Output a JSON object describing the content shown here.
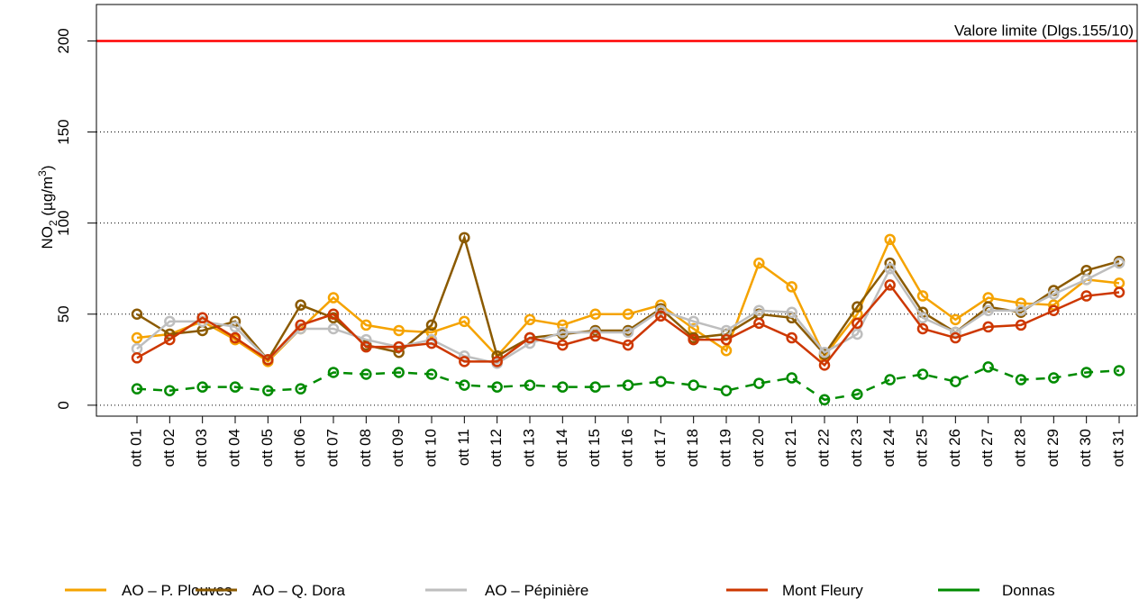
{
  "chart_data": {
    "type": "line",
    "ylabel": {
      "base": "NO",
      "sub": "2",
      "unit": " (µg/m",
      "sup": "3",
      "close": ")"
    },
    "categories": [
      "ott 01",
      "ott 02",
      "ott 03",
      "ott 04",
      "ott 05",
      "ott 06",
      "ott 07",
      "ott 08",
      "ott 09",
      "ott 10",
      "ott 11",
      "ott 12",
      "ott 13",
      "ott 14",
      "ott 15",
      "ott 16",
      "ott 17",
      "ott 18",
      "ott 19",
      "ott 20",
      "ott 21",
      "ott 22",
      "ott 23",
      "ott 24",
      "ott 25",
      "ott 26",
      "ott 27",
      "ott 28",
      "ott 29",
      "ott 30",
      "ott 31"
    ],
    "series": [
      {
        "name": "AO – P. Plouves",
        "color": "#f5a300",
        "linestyle": "solid",
        "values": [
          37,
          39,
          46,
          36,
          24,
          42,
          59,
          44,
          41,
          40,
          46,
          27,
          47,
          44,
          50,
          50,
          55,
          42,
          30,
          78,
          65,
          27,
          50,
          91,
          60,
          47,
          59,
          56,
          55,
          69,
          67
        ]
      },
      {
        "name": "AO – Q. Dora",
        "color": "#8b5a00",
        "linestyle": "solid",
        "values": [
          50,
          39,
          41,
          46,
          25,
          55,
          48,
          33,
          29,
          44,
          92,
          27,
          37,
          39,
          41,
          41,
          53,
          37,
          39,
          50,
          48,
          28,
          54,
          78,
          51,
          40,
          54,
          51,
          63,
          74,
          79
        ]
      },
      {
        "name": "AO – Pépinière",
        "color": "#bebebe",
        "linestyle": "solid",
        "values": [
          31,
          46,
          46,
          43,
          25,
          42,
          42,
          36,
          32,
          36,
          27,
          23,
          34,
          40,
          40,
          40,
          52,
          46,
          41,
          52,
          51,
          29,
          39,
          75,
          48,
          40,
          52,
          52,
          61,
          69,
          78
        ]
      },
      {
        "name": "Mont Fleury",
        "color": "#cd3700",
        "linestyle": "solid",
        "values": [
          26,
          36,
          48,
          37,
          25,
          44,
          50,
          32,
          32,
          34,
          24,
          24,
          37,
          33,
          38,
          33,
          49,
          36,
          36,
          45,
          37,
          22,
          45,
          66,
          42,
          37,
          43,
          44,
          52,
          60,
          62
        ]
      },
      {
        "name": "Donnas",
        "color": "#008b00",
        "linestyle": "dashed",
        "values": [
          9,
          8,
          10,
          10,
          8,
          9,
          18,
          17,
          18,
          17,
          11,
          10,
          11,
          10,
          10,
          11,
          13,
          11,
          8,
          12,
          15,
          3,
          6,
          14,
          17,
          13,
          21,
          14,
          15,
          18,
          19
        ]
      }
    ],
    "limit": {
      "value": 200,
      "label": "Valore limite (Dlgs.155/10)",
      "color": "#ff0000"
    },
    "ylim": [
      -6,
      220
    ],
    "yticks": [
      0,
      50,
      100,
      150,
      200
    ],
    "grid": true,
    "legend": "bottom"
  }
}
